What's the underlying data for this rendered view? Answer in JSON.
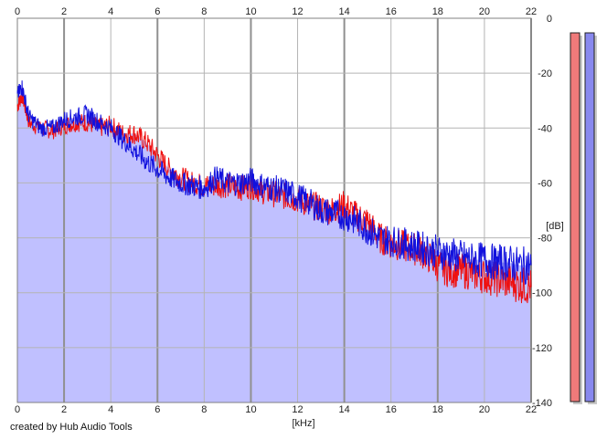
{
  "credit": "created by Hub Audio Tools",
  "chart_data": {
    "type": "area",
    "title": "",
    "xlabel": "[kHz]",
    "ylabel": "[dB]",
    "xlim": [
      0,
      22
    ],
    "ylim": [
      -140,
      0
    ],
    "grid": true,
    "x_ticks": [
      0,
      2,
      4,
      6,
      8,
      10,
      12,
      14,
      16,
      18,
      20,
      22
    ],
    "y_ticks": [
      0,
      -20,
      -40,
      -60,
      -80,
      -100,
      -120,
      -140
    ],
    "series": [
      {
        "channel": "left",
        "color": "#ee1111",
        "x": [
          0,
          0.2,
          0.5,
          1,
          1.5,
          2,
          2.5,
          3,
          3.5,
          4,
          4.5,
          5,
          5.5,
          6,
          6.5,
          7,
          7.5,
          8,
          8.5,
          9,
          9.5,
          10,
          10.5,
          11,
          11.5,
          12,
          12.5,
          13,
          13.5,
          14,
          14.5,
          15,
          15.5,
          16,
          16.5,
          17,
          17.5,
          18,
          18.5,
          19,
          19.5,
          20,
          20.5,
          21,
          21.5,
          22
        ],
        "y": [
          -32,
          -28,
          -38,
          -40,
          -41,
          -39,
          -38,
          -38,
          -40,
          -39,
          -42,
          -42,
          -45,
          -50,
          -55,
          -58,
          -60,
          -61,
          -61,
          -61,
          -62,
          -61,
          -63,
          -64,
          -65,
          -66,
          -68,
          -69,
          -70,
          -68,
          -72,
          -74,
          -80,
          -82,
          -83,
          -84,
          -86,
          -90,
          -92,
          -92,
          -93,
          -94,
          -95,
          -96,
          -97,
          -98
        ]
      },
      {
        "channel": "right",
        "color": "#1111dd",
        "x": [
          0,
          0.2,
          0.5,
          1,
          1.5,
          2,
          2.5,
          3,
          3.5,
          4,
          4.5,
          5,
          5.5,
          6,
          6.5,
          7,
          7.5,
          8,
          8.5,
          9,
          9.5,
          10,
          10.5,
          11,
          11.5,
          12,
          12.5,
          13,
          13.5,
          14,
          14.5,
          15,
          15.5,
          16,
          16.5,
          17,
          17.5,
          18,
          18.5,
          19,
          19.5,
          20,
          20.5,
          21,
          21.5,
          22
        ],
        "y": [
          -28,
          -25,
          -36,
          -40,
          -40,
          -37,
          -36,
          -35,
          -38,
          -40,
          -44,
          -48,
          -52,
          -55,
          -58,
          -60,
          -61,
          -62,
          -58,
          -60,
          -60,
          -59,
          -61,
          -62,
          -63,
          -65,
          -67,
          -70,
          -71,
          -72,
          -74,
          -77,
          -80,
          -81,
          -82,
          -83,
          -84,
          -85,
          -86,
          -87,
          -88,
          -88,
          -89,
          -89,
          -90,
          -90
        ]
      }
    ],
    "meters": [
      {
        "channel": "left",
        "color": "#f07a7a",
        "level_db": -140
      },
      {
        "channel": "right",
        "color": "#8888ee",
        "level_db": -140
      }
    ],
    "fill_color": "#c0c0ff"
  }
}
